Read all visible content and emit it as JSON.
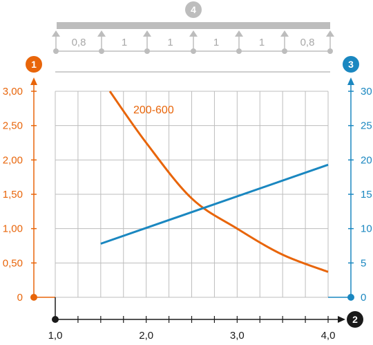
{
  "chart_data": {
    "type": "line",
    "markers": {
      "left_axis": "1",
      "right_axis": "3",
      "x_axis": "2",
      "beam": "4"
    },
    "colors": {
      "left_axis": "#e8650a",
      "right_axis": "#1a87c0",
      "x_axis": "#1a1a1a",
      "beam": "#bdbdbd",
      "grid": "#bdbdbd",
      "curve": "#e8650a",
      "line": "#1a87c0"
    },
    "span_labels": [
      "0,8",
      "1",
      "1",
      "1",
      "1",
      "0,8"
    ],
    "x_ticks": [
      "1,0",
      "2,0",
      "3,0",
      "4,0"
    ],
    "x_range": [
      1.0,
      4.0
    ],
    "y_left_ticks": [
      "0",
      "0,50",
      "1,00",
      "1,50",
      "2,00",
      "2,50",
      "3,00"
    ],
    "y_left_range": [
      0,
      3.0
    ],
    "y_right_ticks": [
      "0",
      "5",
      "10",
      "15",
      "20",
      "25",
      "30"
    ],
    "y_right_range": [
      0,
      30
    ],
    "grid": true,
    "series": [
      {
        "name": "200-600",
        "axis": "left",
        "x": [
          1.6,
          2.0,
          2.5,
          3.0,
          3.5,
          4.0
        ],
        "y": [
          3.0,
          2.25,
          1.44,
          1.0,
          0.62,
          0.37
        ]
      },
      {
        "axis": "right",
        "x": [
          1.5,
          4.0
        ],
        "y": [
          7.8,
          19.3
        ]
      }
    ]
  }
}
